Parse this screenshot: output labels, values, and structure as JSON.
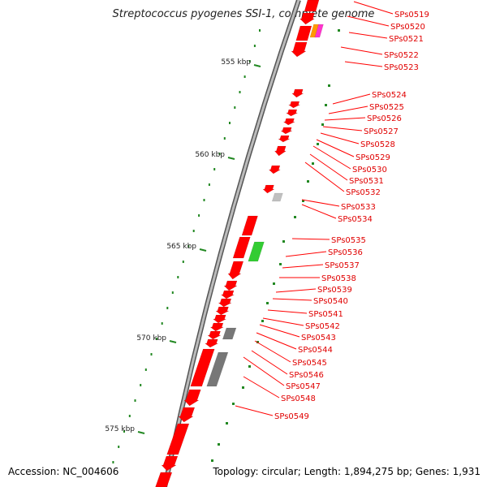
{
  "title": "Streptococcus pyogenes SSI-1, complete genome",
  "accession": "Accession: NC_004606",
  "topology": "Topology: circular; Length: 1,894,275 bp; Genes: 1,931",
  "colors": {
    "gene": "#ff0000",
    "rna": "#33cc33",
    "pseudo": "#777777",
    "orange": "#ff9900",
    "magenta": "#ff33cc",
    "tick": "#228822",
    "backbone": "#999999"
  },
  "ticks": [
    {
      "label": "555 kbp"
    },
    {
      "label": "560 kbp"
    },
    {
      "label": "565 kbp"
    },
    {
      "label": "570 kbp"
    },
    {
      "label": "575 kbp"
    }
  ],
  "genes": [
    "SPs0519",
    "SPs0520",
    "SPs0521",
    "SPs0522",
    "SPs0523",
    "SPs0524",
    "SPs0525",
    "SPs0526",
    "SPs0527",
    "SPs0528",
    "SPs0529",
    "SPs0530",
    "SPs0531",
    "SPs0532",
    "SPs0533",
    "SPs0534",
    "SPs0535",
    "SPs0536",
    "SPs0537",
    "SPs0538",
    "SPs0539",
    "SPs0540",
    "SPs0541",
    "SPs0542",
    "SPs0543",
    "SPs0544",
    "SPs0545",
    "SPs0546",
    "SPs0547",
    "SPs0548",
    "SPs0549"
  ]
}
